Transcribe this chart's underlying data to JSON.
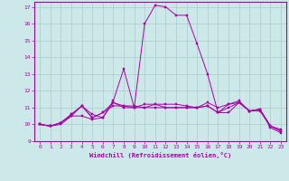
{
  "title": "",
  "xlabel": "Windchill (Refroidissement éolien,°C)",
  "ylabel": "",
  "background_color": "#cce8e8",
  "grid_color": "#aacccc",
  "line_color": "#aa00aa",
  "xlim": [
    -0.5,
    23.5
  ],
  "ylim": [
    9,
    17.3
  ],
  "yticks": [
    9,
    10,
    11,
    12,
    13,
    14,
    15,
    16,
    17
  ],
  "xticks": [
    0,
    1,
    2,
    3,
    4,
    5,
    6,
    7,
    8,
    9,
    10,
    11,
    12,
    13,
    14,
    15,
    16,
    17,
    18,
    19,
    20,
    21,
    22,
    23
  ],
  "series": [
    [
      10.0,
      9.9,
      10.0,
      10.5,
      10.5,
      10.3,
      10.4,
      11.3,
      11.0,
      11.0,
      16.0,
      17.1,
      17.0,
      16.5,
      16.5,
      14.8,
      13.0,
      10.7,
      10.7,
      11.3,
      10.8,
      10.9,
      9.9,
      9.7
    ],
    [
      10.0,
      9.9,
      10.1,
      10.5,
      11.1,
      10.4,
      10.7,
      11.1,
      11.1,
      11.0,
      11.2,
      11.2,
      11.2,
      11.2,
      11.1,
      11.0,
      11.3,
      11.0,
      11.2,
      11.4,
      10.8,
      10.9,
      9.9,
      9.6
    ],
    [
      10.0,
      9.9,
      10.1,
      10.6,
      11.1,
      10.4,
      10.7,
      11.3,
      11.1,
      11.1,
      11.0,
      11.2,
      11.0,
      11.0,
      11.0,
      11.0,
      11.1,
      10.7,
      11.2,
      11.3,
      10.8,
      10.8,
      9.9,
      9.6
    ],
    [
      10.0,
      9.9,
      10.1,
      10.6,
      11.1,
      10.6,
      10.4,
      11.4,
      13.3,
      11.0,
      11.0,
      11.0,
      11.0,
      11.0,
      11.0,
      11.0,
      11.1,
      10.7,
      11.0,
      11.3,
      10.8,
      10.9,
      9.8,
      9.5
    ]
  ]
}
